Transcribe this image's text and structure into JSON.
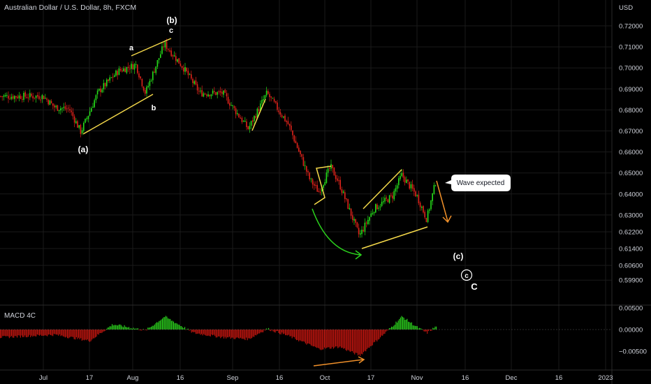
{
  "header": {
    "title": "Australian Dollar / U.S. Dollar, 8h, FXCM"
  },
  "price_axis": {
    "currency": "USD",
    "ticks": [
      {
        "label": "0.72000",
        "value": 0.72
      },
      {
        "label": "0.71000",
        "value": 0.71
      },
      {
        "label": "0.70000",
        "value": 0.7
      },
      {
        "label": "0.69000",
        "value": 0.69
      },
      {
        "label": "0.68000",
        "value": 0.68
      },
      {
        "label": "0.67000",
        "value": 0.67
      },
      {
        "label": "0.66000",
        "value": 0.66
      },
      {
        "label": "0.65000",
        "value": 0.65
      },
      {
        "label": "0.64000",
        "value": 0.64
      },
      {
        "label": "0.63000",
        "value": 0.63
      },
      {
        "label": "0.62200",
        "value": 0.622
      },
      {
        "label": "0.61400",
        "value": 0.614
      },
      {
        "label": "0.60600",
        "value": 0.606
      },
      {
        "label": "0.59900",
        "value": 0.599
      }
    ]
  },
  "macd_panel": {
    "title": "MACD 4C",
    "ticks": [
      {
        "label": "0.00500",
        "value": 0.005
      },
      {
        "label": "0.00000",
        "value": 0.0
      },
      {
        "label": "−0.00500",
        "value": -0.005
      }
    ]
  },
  "time_axis": {
    "labels": [
      "Jul",
      "17",
      "Aug",
      "16",
      "Sep",
      "16",
      "Oct",
      "17",
      "Nov",
      "16",
      "Dec",
      "16",
      "2023"
    ]
  },
  "annotations": {
    "wave_b_paren": "(b)",
    "wave_a_paren": "(a)",
    "wave_c_paren": "(c)",
    "small_a": "a",
    "small_b": "b",
    "small_c": "c",
    "circled_c": "c",
    "big_c": "C",
    "callout": "Wave expected"
  },
  "colors": {
    "up": "#26e01a",
    "down": "#e0231b",
    "macd_up": "#2bd11d",
    "macd_down": "#c8160f",
    "trendline": "#f5d94a",
    "green_arrow": "#2bd11d",
    "orange_arrow": "#f0902a",
    "grid": "#1a1a1a",
    "axis_text": "#d1d4dc"
  },
  "chart_data": {
    "type": "candlestick",
    "title": "Australian Dollar / U.S. Dollar, 8h, FXCM",
    "y_unit": "USD",
    "ylim": [
      0.597,
      0.725
    ],
    "x_labels": [
      "Jul",
      "17",
      "Aug",
      "16",
      "Sep",
      "16",
      "Oct",
      "17",
      "Nov",
      "16",
      "Dec",
      "16",
      "2023"
    ],
    "price_path": [
      {
        "x": "Jul 1",
        "y": 0.6865
      },
      {
        "x": "Jul 5",
        "y": 0.6812
      },
      {
        "x": "Jul 10",
        "y": 0.6805
      },
      {
        "x": "Jul 14",
        "y": 0.6695
      },
      {
        "x": "Jul 20",
        "y": 0.6885
      },
      {
        "x": "Jul 27",
        "y": 0.6985
      },
      {
        "x": "Aug 2",
        "y": 0.7015
      },
      {
        "x": "Aug 5",
        "y": 0.688
      },
      {
        "x": "Aug 11",
        "y": 0.7115
      },
      {
        "x": "Aug 17",
        "y": 0.7
      },
      {
        "x": "Aug 22",
        "y": 0.688
      },
      {
        "x": "Aug 29",
        "y": 0.688
      },
      {
        "x": "Sep 6",
        "y": 0.671
      },
      {
        "x": "Sep 12",
        "y": 0.688
      },
      {
        "x": "Sep 19",
        "y": 0.673
      },
      {
        "x": "Sep 26",
        "y": 0.647
      },
      {
        "x": "Sep 29",
        "y": 0.641
      },
      {
        "x": "Oct 3",
        "y": 0.653
      },
      {
        "x": "Oct 6",
        "y": 0.645
      },
      {
        "x": "Oct 13",
        "y": 0.62
      },
      {
        "x": "Oct 18",
        "y": 0.633
      },
      {
        "x": "Oct 24",
        "y": 0.639
      },
      {
        "x": "Oct 27",
        "y": 0.649
      },
      {
        "x": "Nov 1",
        "y": 0.639
      },
      {
        "x": "Nov 4",
        "y": 0.628
      },
      {
        "x": "Nov 7",
        "y": 0.647
      }
    ],
    "macd_histogram": {
      "peaks": [
        {
          "x": "Aug 11",
          "value": 0.003
        },
        {
          "x": "Sep 12",
          "value": 0.0002
        },
        {
          "x": "Oct 13",
          "value": -0.006
        },
        {
          "x": "Oct 27",
          "value": 0.003
        },
        {
          "x": "Nov 4",
          "value": -0.0008
        }
      ]
    }
  }
}
